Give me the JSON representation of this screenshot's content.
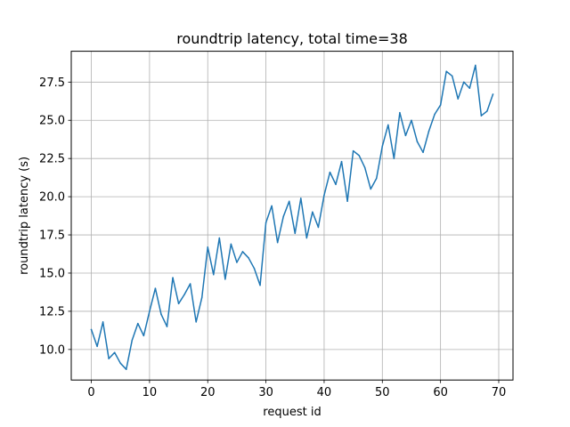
{
  "chart_data": {
    "type": "line",
    "title": "roundtrip latency, total time=38",
    "xlabel": "request id",
    "ylabel": "roundtrip latency (s)",
    "xlim": [
      -3.45,
      72.45
    ],
    "ylim": [
      8.0,
      29.52
    ],
    "xticks": [
      0,
      10,
      20,
      30,
      40,
      50,
      60,
      70
    ],
    "yticks": [
      10.0,
      12.5,
      15.0,
      17.5,
      20.0,
      22.5,
      25.0,
      27.5
    ],
    "ytick_labels": [
      "10.0",
      "12.5",
      "15.0",
      "17.5",
      "20.0",
      "22.5",
      "25.0",
      "27.5"
    ],
    "grid": true,
    "series": [
      {
        "name": "latency",
        "color": "#1f77b4",
        "x": [
          0,
          1,
          2,
          3,
          4,
          5,
          6,
          7,
          8,
          9,
          10,
          11,
          12,
          13,
          14,
          15,
          16,
          17,
          18,
          19,
          20,
          21,
          22,
          23,
          24,
          25,
          26,
          27,
          28,
          29,
          30,
          31,
          32,
          33,
          34,
          35,
          36,
          37,
          38,
          39,
          40,
          41,
          42,
          43,
          44,
          45,
          46,
          47,
          48,
          49,
          50,
          51,
          52,
          53,
          54,
          55,
          56,
          57,
          58,
          59,
          60,
          61,
          62,
          63,
          64,
          65,
          66,
          67,
          68,
          69
        ],
        "values": [
          11.3,
          10.2,
          11.8,
          9.4,
          9.8,
          9.1,
          8.7,
          10.6,
          11.7,
          10.9,
          12.5,
          14.0,
          12.3,
          11.5,
          14.7,
          13.0,
          13.6,
          14.3,
          11.8,
          13.4,
          16.7,
          14.9,
          17.3,
          14.6,
          16.9,
          15.7,
          16.4,
          16.0,
          15.3,
          14.2,
          18.3,
          19.4,
          17.0,
          18.7,
          19.7,
          17.6,
          19.9,
          17.3,
          19.0,
          18.0,
          20.1,
          21.6,
          20.8,
          22.3,
          19.7,
          23.0,
          22.7,
          21.9,
          20.5,
          21.2,
          23.3,
          24.7,
          22.5,
          25.5,
          24.0,
          25.0,
          23.6,
          22.9,
          24.3,
          25.4,
          26.0,
          28.2,
          27.9,
          26.4,
          27.5,
          27.1,
          28.6,
          25.3,
          25.6,
          26.7
        ]
      }
    ]
  }
}
